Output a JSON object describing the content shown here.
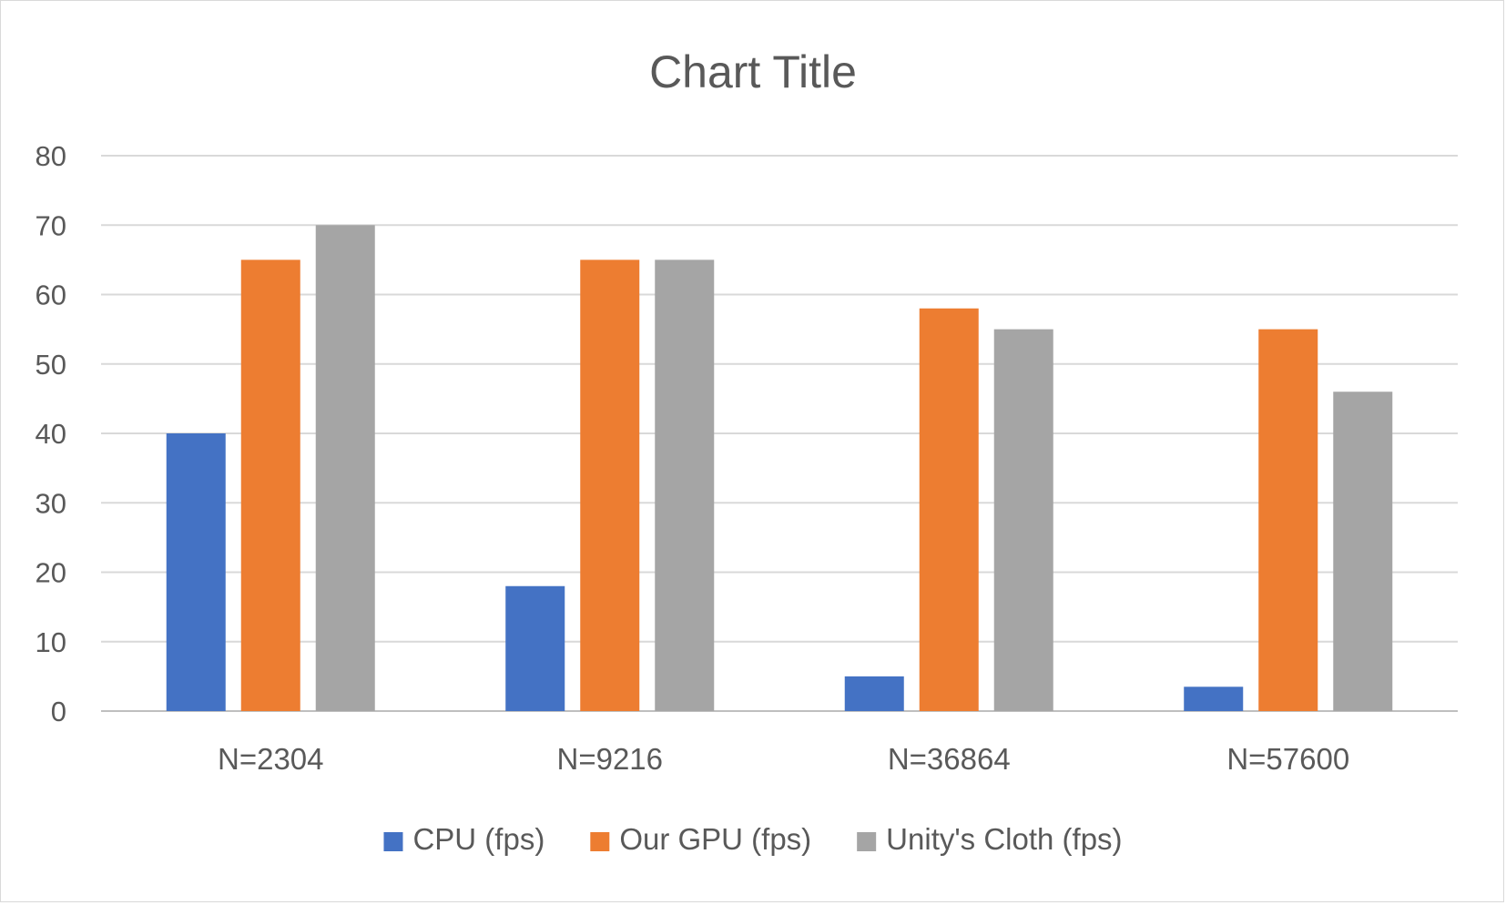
{
  "chart_data": {
    "type": "bar",
    "title": "Chart Title",
    "xlabel": "",
    "ylabel": "",
    "categories": [
      "N=2304",
      "N=9216",
      "N=36864",
      "N=57600"
    ],
    "series": [
      {
        "name": "CPU (fps)",
        "color": "#4472c4",
        "values": [
          40,
          18,
          5,
          3.5
        ]
      },
      {
        "name": "Our GPU (fps)",
        "color": "#ed7d31",
        "values": [
          65,
          65,
          58,
          55
        ]
      },
      {
        "name": "Unity's Cloth (fps)",
        "color": "#a5a5a5",
        "values": [
          70,
          65,
          55,
          46
        ]
      }
    ],
    "ylim": [
      0,
      80
    ],
    "yticks": [
      0,
      10,
      20,
      30,
      40,
      50,
      60,
      70,
      80
    ],
    "grid": true,
    "legend_position": "bottom"
  }
}
